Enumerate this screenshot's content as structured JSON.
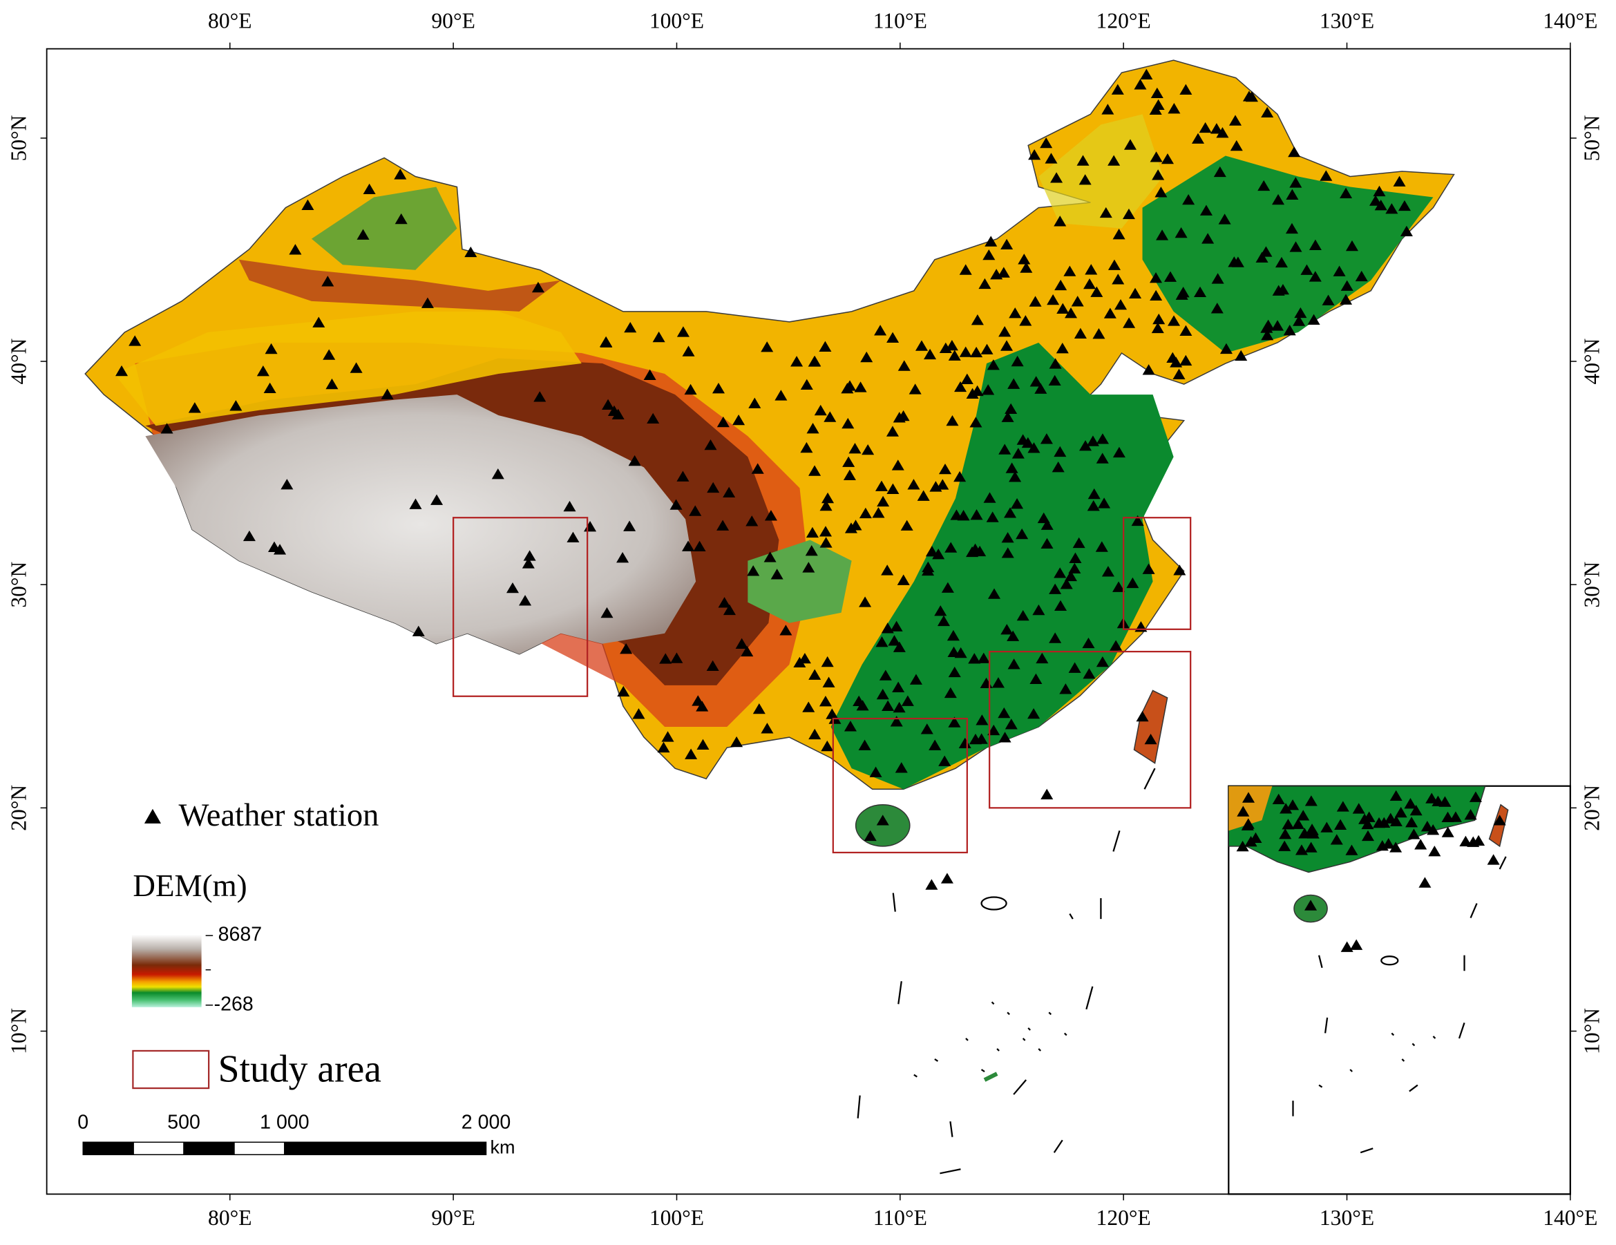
{
  "map": {
    "xlim": [
      71.8,
      140
    ],
    "ylim": [
      2.7,
      54
    ],
    "xticks": [
      {
        "value": 80,
        "label": "80°E"
      },
      {
        "value": 90,
        "label": "90°E"
      },
      {
        "value": 100,
        "label": "100°E"
      },
      {
        "value": 110,
        "label": "110°E"
      },
      {
        "value": 120,
        "label": "120°E"
      },
      {
        "value": 130,
        "label": "130°E"
      },
      {
        "value": 140,
        "label": "140°E"
      }
    ],
    "yticks": [
      {
        "value": 10,
        "label": "10°N"
      },
      {
        "value": 20,
        "label": "20°N"
      },
      {
        "value": 30,
        "label": "30°N"
      },
      {
        "value": 40,
        "label": "40°N"
      },
      {
        "value": 50,
        "label": "50°N"
      }
    ],
    "study_areas": [
      {
        "lon": [
          90,
          96
        ],
        "lat": [
          25,
          33
        ]
      },
      {
        "lon": [
          120,
          123
        ],
        "lat": [
          28,
          33
        ]
      },
      {
        "lon": [
          114,
          123
        ],
        "lat": [
          20,
          27
        ]
      },
      {
        "lon": [
          107,
          113
        ],
        "lat": [
          18,
          24
        ]
      }
    ]
  },
  "legend": {
    "station": "Weather station",
    "dem_title": "DEM(m)",
    "dem_max": 8687,
    "dem_min": -268,
    "study_area": "Study area"
  },
  "scale_bar": {
    "ticks": [
      0,
      500,
      {
        "value": 1000,
        "label": "1 000"
      },
      {
        "value": 2000,
        "label": "2 000"
      }
    ],
    "unit": "km"
  }
}
